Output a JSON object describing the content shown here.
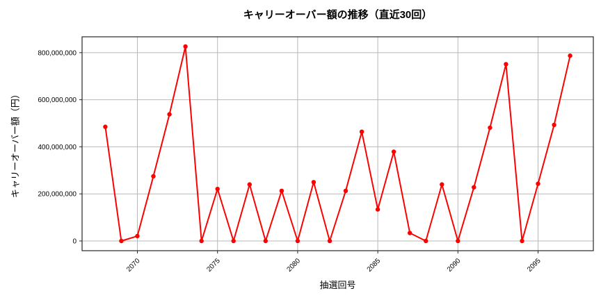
{
  "figure": {
    "title": "キャリーオーバー額の推移（直近30回）",
    "xlabel": "抽選回号",
    "ylabel": "キャリーオーバー額（円）"
  },
  "chart_data": {
    "type": "line",
    "title": "キャリーオーバー額の推移（直近30回）",
    "xlabel": "抽選回号",
    "ylabel": "キャリーオーバー額（円）",
    "x": [
      2068,
      2069,
      2070,
      2071,
      2072,
      2073,
      2074,
      2075,
      2076,
      2077,
      2078,
      2079,
      2080,
      2081,
      2082,
      2083,
      2084,
      2085,
      2086,
      2087,
      2088,
      2089,
      2090,
      2091,
      2092,
      2093,
      2094,
      2095,
      2096,
      2097
    ],
    "values": [
      485000000,
      0,
      21000000,
      275000000,
      538000000,
      826000000,
      0,
      221000000,
      0,
      240000000,
      0,
      213000000,
      0,
      250000000,
      0,
      213000000,
      464000000,
      134000000,
      379000000,
      34000000,
      0,
      240000000,
      0,
      228000000,
      481000000,
      751000000,
      0,
      243000000,
      493000000,
      787000000
    ],
    "line_color": "#ff0000",
    "marker": "circle",
    "marker_color": "#ff0000",
    "grid": true,
    "grid_color": "#b8b8b8",
    "axis_color": "#262626",
    "background": "#ffffff",
    "xlim": [
      2066.55,
      2098.45
    ],
    "ylim": [
      -41300000,
      867300000
    ],
    "xticks": [
      2070,
      2075,
      2080,
      2085,
      2090,
      2095
    ],
    "xtick_labels": [
      "2070",
      "2075",
      "2080",
      "2085",
      "2090",
      "2095"
    ],
    "x_tick_rotation": 45,
    "yticks": [
      0,
      200000000,
      400000000,
      600000000,
      800000000
    ],
    "ytick_labels": [
      "0",
      "200,000,000",
      "400,000,000",
      "600,000,000",
      "800,000,000"
    ],
    "legend": false
  }
}
